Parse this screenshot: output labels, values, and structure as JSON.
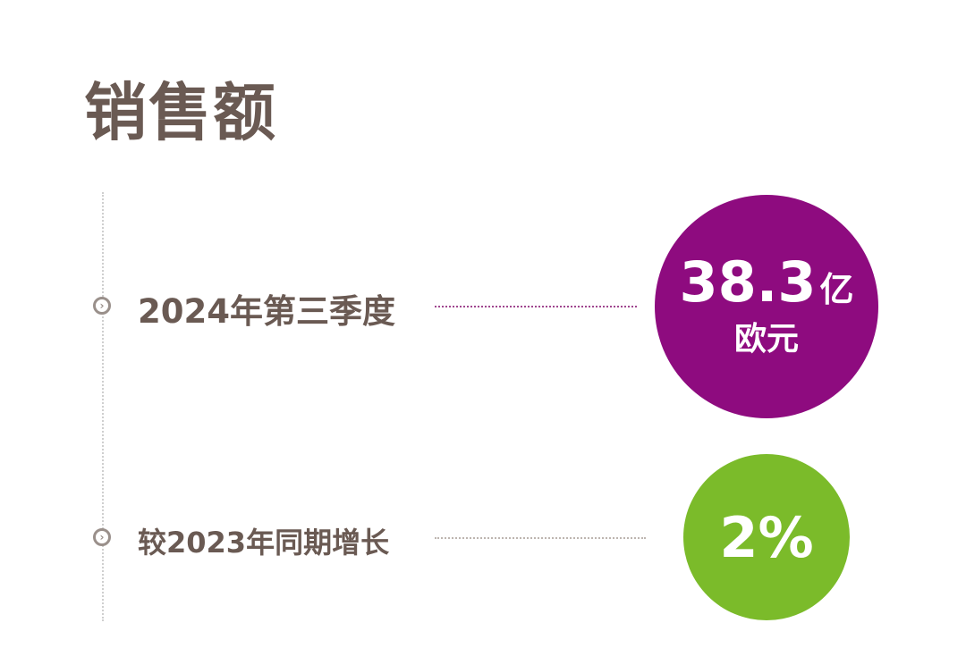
{
  "title": "销售额",
  "rows": [
    {
      "label": "2024年第三季度",
      "value": "38.3",
      "unit": "亿",
      "unit2": "欧元",
      "color": "#8e0b7f",
      "icon": "chevron-right-circle-icon"
    },
    {
      "label": "较2023年同期增长",
      "value": "2%",
      "color": "#7bbb2a",
      "icon": "chevron-right-circle-icon"
    }
  ]
}
